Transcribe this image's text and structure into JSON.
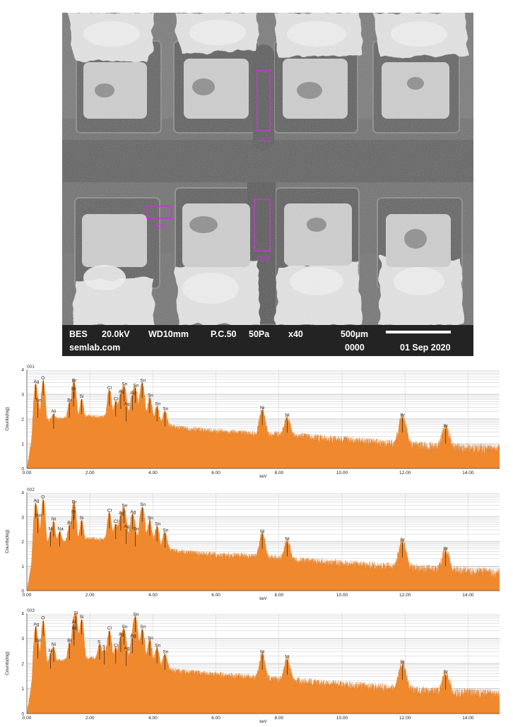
{
  "micrograph": {
    "info": {
      "mode": "BES",
      "voltage": "20.0kV",
      "wd": "WD10mm",
      "pc": "P.C.50",
      "pressure": "50Pa",
      "magnification": "x40",
      "scale_label": "500µm",
      "site": "semlab.com",
      "number": "0000",
      "date": "01 Sep 2020"
    },
    "regions": [
      {
        "label": "001"
      },
      {
        "label": "002"
      },
      {
        "label": "003"
      }
    ],
    "region_color": "#c23ad0"
  },
  "chart_data": [
    {
      "type": "area",
      "label": "001",
      "xlabel": "keV",
      "ylabel": "Counts(log)",
      "xlim": [
        0,
        15
      ],
      "ylim": [
        0,
        4
      ],
      "x_ticks": [
        "0.00",
        "2.00",
        "4.00",
        "6.00",
        "8.00",
        "10.00",
        "12.00",
        "14.00"
      ],
      "y_ticks": [
        "0",
        "1",
        "2",
        "3",
        "4"
      ],
      "fill_color": "#f0892e",
      "baseline": [
        [
          0.25,
          1.9
        ],
        [
          1.0,
          2.0
        ],
        [
          2.0,
          2.1
        ],
        [
          3.0,
          2.05
        ],
        [
          4.0,
          1.8
        ],
        [
          5.0,
          1.6
        ],
        [
          6.0,
          1.5
        ],
        [
          7.0,
          1.4
        ],
        [
          8.0,
          1.35
        ],
        [
          9.0,
          1.25
        ],
        [
          10.0,
          1.15
        ],
        [
          11.0,
          1.05
        ],
        [
          12.0,
          0.95
        ],
        [
          13.0,
          0.85
        ],
        [
          14.0,
          0.8
        ],
        [
          15.0,
          0.75
        ]
      ],
      "peaks": [
        {
          "label": "Ag",
          "energy": 0.28,
          "height": 3.4
        },
        {
          "label": "Sn",
          "energy": 0.35,
          "height": 2.65
        },
        {
          "label": "O",
          "energy": 0.52,
          "height": 3.55
        },
        {
          "label": "Ni",
          "energy": 0.85,
          "height": 2.2
        },
        {
          "label": "Br",
          "energy": 1.48,
          "height": 3.1
        },
        {
          "label": "Br",
          "energy": 1.5,
          "height": 3.45
        },
        {
          "label": "Br",
          "energy": 1.35,
          "height": 2.65
        },
        {
          "label": "Si",
          "energy": 1.74,
          "height": 2.8
        },
        {
          "label": "Cl",
          "energy": 2.62,
          "height": 3.15
        },
        {
          "label": "Cl",
          "energy": 2.82,
          "height": 2.7
        },
        {
          "label": "Ag",
          "energy": 2.98,
          "height": 3.0
        },
        {
          "label": "Ag",
          "energy": 3.15,
          "height": 2.5
        },
        {
          "label": "Ag",
          "energy": 3.35,
          "height": 2.95
        },
        {
          "label": "Sn",
          "energy": 3.08,
          "height": 3.3
        },
        {
          "label": "Sn",
          "energy": 3.44,
          "height": 3.25
        },
        {
          "label": "Sn",
          "energy": 3.66,
          "height": 3.45
        },
        {
          "label": "Sn",
          "energy": 3.9,
          "height": 2.85
        },
        {
          "label": "Sn",
          "energy": 4.13,
          "height": 2.5
        },
        {
          "label": "Sn",
          "energy": 4.38,
          "height": 2.3
        },
        {
          "label": "Ni",
          "energy": 7.47,
          "height": 2.35
        },
        {
          "label": "Ni",
          "energy": 8.26,
          "height": 2.05
        },
        {
          "label": "Br",
          "energy": 11.92,
          "height": 2.05
        },
        {
          "label": "Br",
          "energy": 13.29,
          "height": 1.6
        }
      ]
    },
    {
      "type": "area",
      "label": "002",
      "xlabel": "keV",
      "ylabel": "Counts(log)",
      "xlim": [
        0,
        15
      ],
      "ylim": [
        0,
        4
      ],
      "x_ticks": [
        "0.00",
        "2.00",
        "4.00",
        "6.00",
        "8.00",
        "10.00",
        "12.00",
        "14.00"
      ],
      "y_ticks": [
        "0",
        "1",
        "2",
        "3",
        "4"
      ],
      "fill_color": "#f0892e",
      "baseline": [
        [
          0.25,
          1.85
        ],
        [
          1.0,
          2.0
        ],
        [
          2.0,
          2.1
        ],
        [
          3.0,
          2.05
        ],
        [
          4.0,
          1.75
        ],
        [
          5.0,
          1.55
        ],
        [
          6.0,
          1.45
        ],
        [
          7.0,
          1.4
        ],
        [
          8.0,
          1.3
        ],
        [
          9.0,
          1.2
        ],
        [
          10.0,
          1.1
        ],
        [
          11.0,
          1.0
        ],
        [
          12.0,
          0.95
        ],
        [
          13.0,
          0.85
        ],
        [
          14.0,
          0.75
        ],
        [
          15.0,
          0.7
        ]
      ],
      "peaks": [
        {
          "label": "Ag",
          "energy": 0.28,
          "height": 3.55
        },
        {
          "label": "Sn",
          "energy": 0.35,
          "height": 2.95
        },
        {
          "label": "O",
          "energy": 0.52,
          "height": 3.7
        },
        {
          "label": "Ni",
          "energy": 0.75,
          "height": 2.4
        },
        {
          "label": "Ni",
          "energy": 0.85,
          "height": 2.8
        },
        {
          "label": "Na",
          "energy": 1.04,
          "height": 2.4
        },
        {
          "label": "Br",
          "energy": 1.35,
          "height": 2.65
        },
        {
          "label": "Br",
          "energy": 1.48,
          "height": 3.1
        },
        {
          "label": "Br",
          "energy": 1.5,
          "height": 3.5
        },
        {
          "label": "Si",
          "energy": 1.74,
          "height": 2.85
        },
        {
          "label": "Cl",
          "energy": 2.62,
          "height": 3.15
        },
        {
          "label": "Cl",
          "energy": 2.82,
          "height": 2.7
        },
        {
          "label": "Ag",
          "energy": 2.98,
          "height": 3.05
        },
        {
          "label": "Ag",
          "energy": 3.15,
          "height": 2.5
        },
        {
          "label": "Ag",
          "energy": 3.35,
          "height": 3.1
        },
        {
          "label": "Sn",
          "energy": 3.08,
          "height": 3.35
        },
        {
          "label": "Sn",
          "energy": 3.44,
          "height": 2.4
        },
        {
          "label": "Sn",
          "energy": 3.66,
          "height": 3.4
        },
        {
          "label": "Sn",
          "energy": 3.9,
          "height": 2.85
        },
        {
          "label": "Sn",
          "energy": 4.13,
          "height": 2.6
        },
        {
          "label": "Sn",
          "energy": 4.38,
          "height": 2.35
        },
        {
          "label": "Ni",
          "energy": 7.47,
          "height": 2.3
        },
        {
          "label": "Ni",
          "energy": 8.26,
          "height": 2.0
        },
        {
          "label": "Br",
          "energy": 11.92,
          "height": 1.95
        },
        {
          "label": "Br",
          "energy": 13.29,
          "height": 1.6
        }
      ]
    },
    {
      "type": "area",
      "label": "003",
      "xlabel": "keV",
      "ylabel": "Counts(log)",
      "xlim": [
        0,
        15
      ],
      "ylim": [
        0,
        4
      ],
      "x_ticks": [
        "0.00",
        "2.00",
        "4.00",
        "6.00",
        "8.00",
        "10.00",
        "12.00",
        "14.00"
      ],
      "y_ticks": [
        "0",
        "1",
        "2",
        "3",
        "4"
      ],
      "fill_color": "#f0892e",
      "baseline": [
        [
          0.25,
          1.9
        ],
        [
          1.0,
          2.1
        ],
        [
          2.0,
          2.2
        ],
        [
          3.0,
          2.1
        ],
        [
          4.0,
          1.85
        ],
        [
          5.0,
          1.65
        ],
        [
          6.0,
          1.55
        ],
        [
          7.0,
          1.45
        ],
        [
          8.0,
          1.35
        ],
        [
          9.0,
          1.25
        ],
        [
          10.0,
          1.15
        ],
        [
          11.0,
          1.05
        ],
        [
          12.0,
          0.95
        ],
        [
          13.0,
          0.85
        ],
        [
          14.0,
          0.8
        ],
        [
          15.0,
          0.75
        ]
      ],
      "peaks": [
        {
          "label": "Ag",
          "energy": 0.28,
          "height": 3.45
        },
        {
          "label": "Sn",
          "energy": 0.35,
          "height": 2.8
        },
        {
          "label": "O",
          "energy": 0.52,
          "height": 3.7
        },
        {
          "label": "Ni",
          "energy": 0.75,
          "height": 2.4
        },
        {
          "label": "Ni",
          "energy": 0.85,
          "height": 2.65
        },
        {
          "label": "Br",
          "energy": 1.35,
          "height": 2.8
        },
        {
          "label": "Br",
          "energy": 1.5,
          "height": 3.3
        },
        {
          "label": "Al",
          "energy": 1.49,
          "height": 3.55
        },
        {
          "label": "Si",
          "energy": 1.56,
          "height": 3.9
        },
        {
          "label": "Si",
          "energy": 1.74,
          "height": 3.75
        },
        {
          "label": "S",
          "energy": 2.31,
          "height": 2.75
        },
        {
          "label": "S",
          "energy": 2.46,
          "height": 2.55
        },
        {
          "label": "Cl",
          "energy": 2.62,
          "height": 3.3
        },
        {
          "label": "Cl",
          "energy": 2.82,
          "height": 2.6
        },
        {
          "label": "Ag",
          "energy": 2.98,
          "height": 3.05
        },
        {
          "label": "Ag",
          "energy": 3.15,
          "height": 2.5
        },
        {
          "label": "Ag",
          "energy": 3.35,
          "height": 3.0
        },
        {
          "label": "Sn",
          "energy": 3.08,
          "height": 3.35
        },
        {
          "label": "Sn",
          "energy": 3.44,
          "height": 3.85
        },
        {
          "label": "Sn",
          "energy": 3.66,
          "height": 3.35
        },
        {
          "label": "Sn",
          "energy": 3.9,
          "height": 2.9
        },
        {
          "label": "Sn",
          "energy": 4.13,
          "height": 2.6
        },
        {
          "label": "Sn",
          "energy": 4.38,
          "height": 2.35
        },
        {
          "label": "Ni",
          "energy": 7.47,
          "height": 2.35
        },
        {
          "label": "Ni",
          "energy": 8.26,
          "height": 2.15
        },
        {
          "label": "Br",
          "energy": 11.92,
          "height": 1.95
        },
        {
          "label": "Br",
          "energy": 13.29,
          "height": 1.55
        }
      ]
    }
  ]
}
